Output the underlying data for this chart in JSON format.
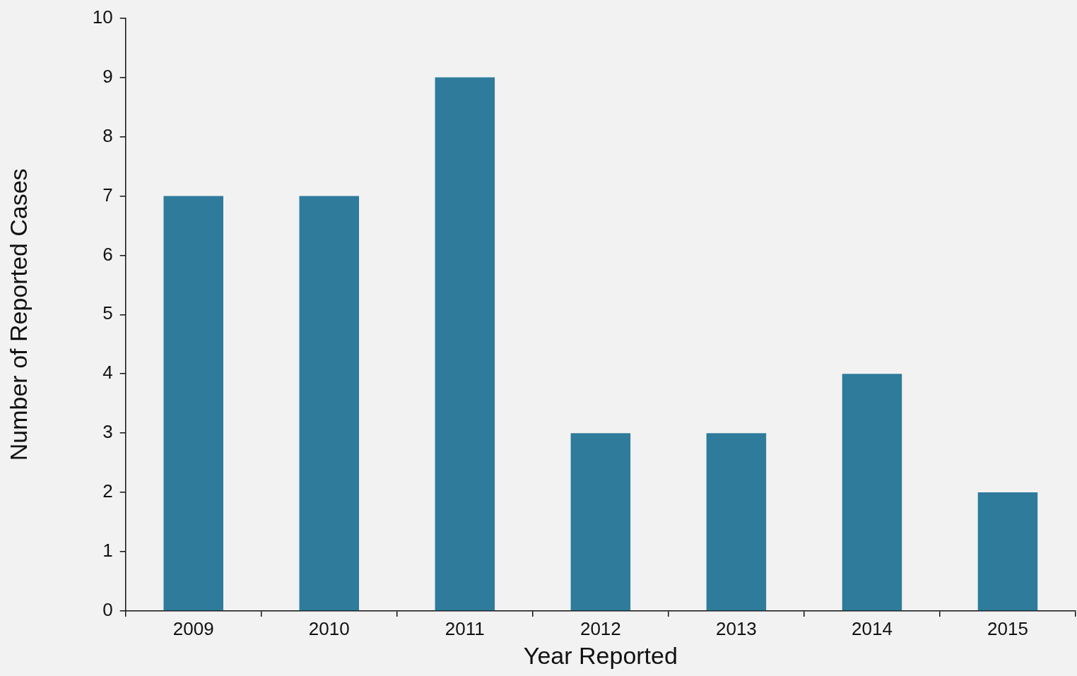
{
  "chart_data": {
    "type": "bar",
    "categories": [
      "2009",
      "2010",
      "2011",
      "2012",
      "2013",
      "2014",
      "2015"
    ],
    "values": [
      7,
      7,
      9,
      3,
      3,
      4,
      2
    ],
    "color": "#2e7b9c",
    "xlabel": "Year Reported",
    "ylabel": "Number of Reported Cases",
    "ylim": [
      0,
      10
    ],
    "yticks": [
      0,
      1,
      2,
      3,
      4,
      5,
      6,
      7,
      8,
      9,
      10
    ],
    "grid": false
  }
}
